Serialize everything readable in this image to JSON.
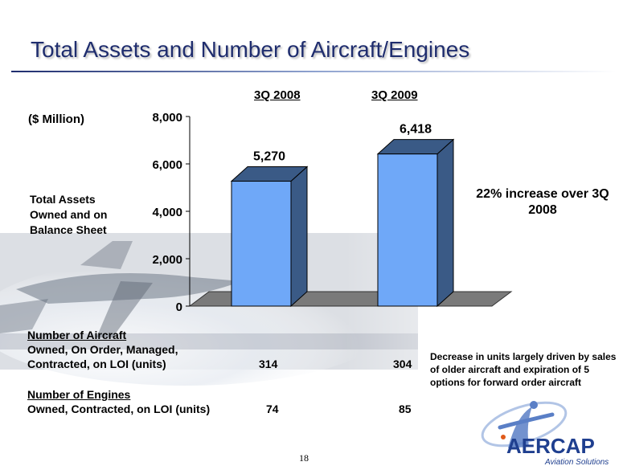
{
  "slide": {
    "title": "Total Assets and Number of Aircraft/Engines",
    "unit_label": "($ Million)",
    "assets_label": "Total Assets Owned and on Balance Sheet",
    "increase_note": "22% increase over 3Q 2008",
    "page_number": "18"
  },
  "chart_data": {
    "type": "bar",
    "categories": [
      "3Q 2008",
      "3Q 2009"
    ],
    "values": [
      5270,
      6418
    ],
    "value_labels": [
      "5,270",
      "6,418"
    ],
    "y_ticks": [
      "0",
      "2,000",
      "4,000",
      "6,000",
      "8,000"
    ],
    "ylim": [
      0,
      8000
    ],
    "bar_color": "#6fa8f8",
    "bar_side_color": "#3a5a86",
    "floor_color": "#7a7a7a"
  },
  "table": {
    "aircraft_header": "Number of Aircraft",
    "aircraft_line1": "Owned, On Order, Managed,",
    "aircraft_line2": "Contracted, on LOI (units)",
    "aircraft_values": [
      "314",
      "304"
    ],
    "engines_header": "Number of Engines",
    "engines_line": "Owned, Contracted, on LOI (units)",
    "engines_values": [
      "74",
      "85"
    ],
    "decrease_note": "Decrease in units largely driven by sales of older aircraft and expiration of 5 options for forward order aircraft"
  },
  "logo": {
    "name": "AERCAP",
    "tagline": "Aviation Solutions",
    "brand_color": "#1f3f8f",
    "accent_color": "#e05a1a"
  }
}
